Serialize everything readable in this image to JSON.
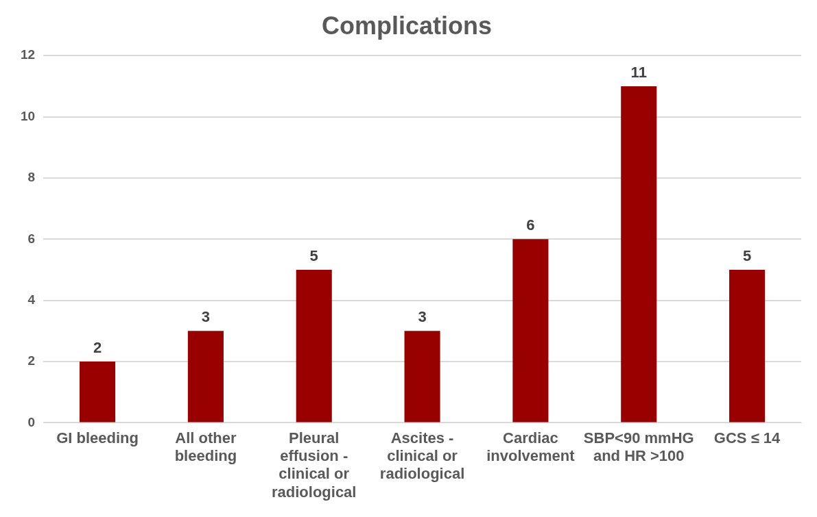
{
  "chart_data": {
    "type": "bar",
    "title": "Complications",
    "categories": [
      "GI bleeding",
      "All other bleeding",
      "Pleural effusion - clinical or radiological",
      "Ascites - clinical or radiological",
      "Cardiac involvement",
      "SBP<90 mmHG and HR >100",
      "GCS ≤ 14"
    ],
    "values": [
      2,
      3,
      5,
      3,
      6,
      11,
      5
    ],
    "color": "#990000",
    "ylim": [
      0,
      12
    ],
    "yticks": [
      0,
      2,
      4,
      6,
      8,
      10,
      12
    ],
    "grid": "y",
    "data_labels": true
  }
}
